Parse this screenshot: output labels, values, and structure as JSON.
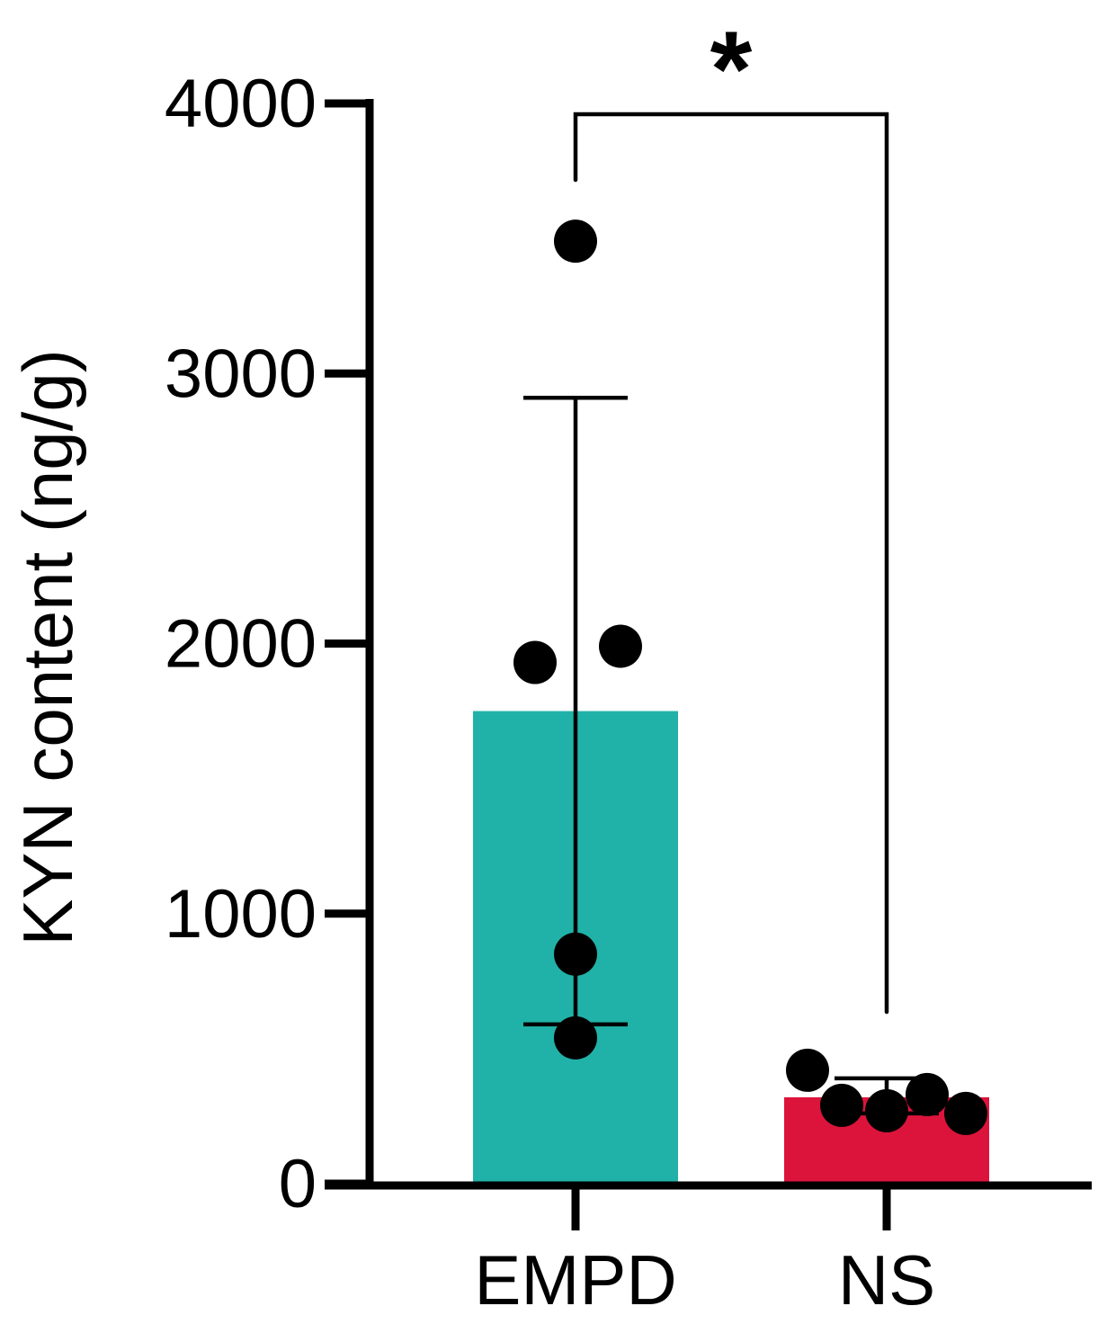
{
  "chart_data": {
    "type": "bar",
    "title": "",
    "xlabel": "",
    "ylabel": "KYN content (ng/g)",
    "ylim": [
      0,
      4000
    ],
    "yticks": [
      0,
      1000,
      2000,
      3000,
      4000
    ],
    "categories": [
      "EMPD",
      "NS"
    ],
    "bars": [
      {
        "category": "EMPD",
        "mean": 1750,
        "sd_low": 590,
        "sd_high": 2910,
        "color": "#20B2A8"
      },
      {
        "category": "NS",
        "mean": 320,
        "sd_low": 260,
        "sd_high": 390,
        "color": "#DC143C"
      }
    ],
    "points": [
      {
        "category": "EMPD",
        "values": [
          3490,
          1930,
          1990,
          850,
          540
        ]
      },
      {
        "category": "NS",
        "values": [
          420,
          290,
          270,
          330,
          260
        ]
      }
    ],
    "significance": {
      "label": "*",
      "between": [
        "EMPD",
        "NS"
      ]
    },
    "grid": false,
    "legend": "none"
  }
}
